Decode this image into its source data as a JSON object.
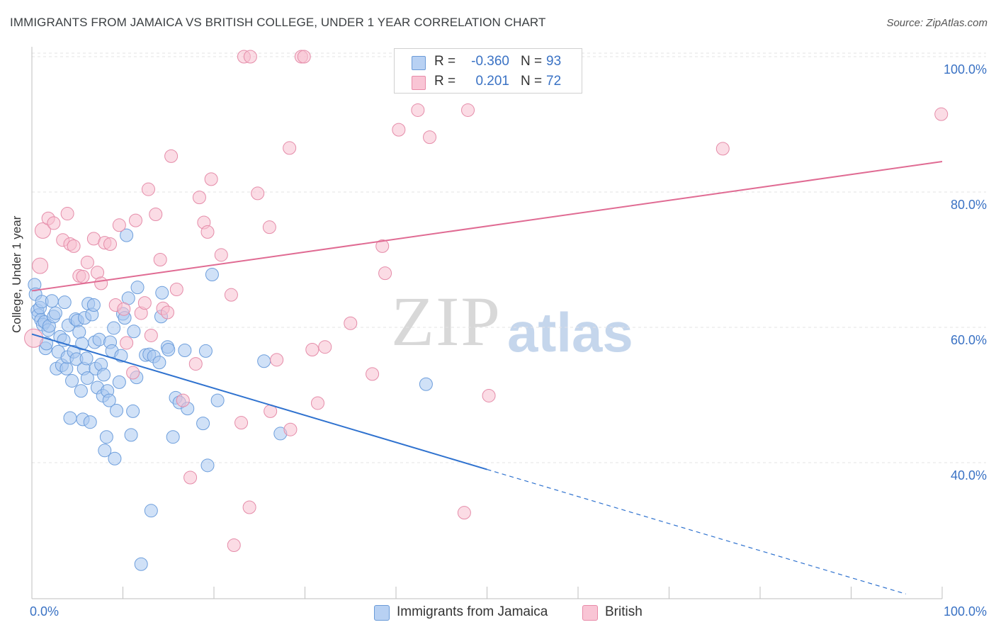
{
  "header": {
    "title": "IMMIGRANTS FROM JAMAICA VS BRITISH COLLEGE, UNDER 1 YEAR CORRELATION CHART",
    "source": "Source: ZipAtlas.com"
  },
  "watermark": {
    "zip": "ZIP",
    "atlas": "atlas"
  },
  "stats": [
    {
      "label": "R =",
      "r": "-0.360",
      "n_label": "N =",
      "n": "93",
      "color": "#b8d1f3",
      "border": "#6b9bd8"
    },
    {
      "label": "R =",
      "r": "0.201",
      "n_label": "N =",
      "n": "72",
      "color": "#f9c5d5",
      "border": "#e88aa8"
    }
  ],
  "legend": {
    "jamaica": "Immigrants from Jamaica",
    "british": "British"
  },
  "colors": {
    "blue_fill": "#a9c8f0",
    "blue_stroke": "#6d9edc",
    "blue_line": "#2f72cf",
    "pink_fill": "#f7bfd0",
    "pink_stroke": "#e58ca9",
    "pink_line": "#e06b93",
    "axis_text": "#3a72c4",
    "grid": "#e3e3e3"
  },
  "chart_data": {
    "type": "scatter",
    "xlabel": "",
    "ylabel": "College, Under 1 year",
    "xlim": [
      0,
      100
    ],
    "ylim": [
      20,
      102
    ],
    "x_tick_labels": [
      "0.0%",
      "100.0%"
    ],
    "y_ticks": [
      40,
      60,
      80,
      100
    ],
    "y_tick_labels": [
      "40.0%",
      "60.0%",
      "80.0%",
      "100.0%"
    ],
    "grid": true,
    "legend_position": "bottom-center",
    "series": [
      {
        "name": "Immigrants from Jamaica",
        "r": -0.36,
        "n": 93,
        "trend": {
          "x0": 0,
          "y0": 59.0,
          "x1": 50,
          "y1": 39.0,
          "dash_to_x": 96,
          "dash_to_y": 20.6
        },
        "points": [
          [
            0.3,
            66.3
          ],
          [
            0.4,
            64.9
          ],
          [
            0.6,
            62.5
          ],
          [
            0.7,
            61.8
          ],
          [
            0.9,
            62.9
          ],
          [
            1.0,
            61.1
          ],
          [
            1.1,
            63.8
          ],
          [
            1.2,
            60.4
          ],
          [
            1.4,
            60.8
          ],
          [
            1.5,
            56.9
          ],
          [
            1.6,
            57.6
          ],
          [
            1.8,
            59.6
          ],
          [
            1.9,
            60.2
          ],
          [
            2.2,
            63.9
          ],
          [
            2.4,
            61.6
          ],
          [
            2.6,
            62.1
          ],
          [
            2.7,
            53.9
          ],
          [
            2.9,
            56.4
          ],
          [
            3.1,
            58.6
          ],
          [
            3.3,
            54.4
          ],
          [
            3.5,
            58.1
          ],
          [
            3.6,
            63.7
          ],
          [
            3.8,
            53.9
          ],
          [
            3.9,
            55.6
          ],
          [
            4.0,
            60.3
          ],
          [
            4.2,
            46.6
          ],
          [
            4.4,
            52.1
          ],
          [
            4.6,
            56.4
          ],
          [
            4.8,
            61.2
          ],
          [
            4.9,
            55.3
          ],
          [
            5.0,
            61.0
          ],
          [
            5.2,
            59.3
          ],
          [
            5.4,
            50.6
          ],
          [
            5.5,
            57.6
          ],
          [
            5.6,
            46.4
          ],
          [
            5.7,
            53.9
          ],
          [
            5.8,
            61.4
          ],
          [
            6.0,
            55.4
          ],
          [
            6.1,
            52.5
          ],
          [
            6.2,
            63.5
          ],
          [
            6.4,
            46.0
          ],
          [
            6.6,
            61.9
          ],
          [
            6.8,
            63.3
          ],
          [
            6.9,
            57.8
          ],
          [
            7.0,
            53.9
          ],
          [
            7.2,
            51.1
          ],
          [
            7.4,
            58.2
          ],
          [
            7.6,
            54.5
          ],
          [
            7.8,
            49.9
          ],
          [
            7.9,
            53.0
          ],
          [
            8.0,
            41.8
          ],
          [
            8.2,
            43.8
          ],
          [
            8.3,
            50.6
          ],
          [
            8.5,
            49.2
          ],
          [
            8.6,
            57.8
          ],
          [
            8.8,
            56.5
          ],
          [
            9.0,
            59.9
          ],
          [
            9.1,
            40.6
          ],
          [
            9.3,
            47.7
          ],
          [
            9.6,
            51.9
          ],
          [
            9.8,
            55.8
          ],
          [
            10.0,
            62.0
          ],
          [
            10.2,
            61.4
          ],
          [
            10.4,
            73.6
          ],
          [
            10.6,
            64.3
          ],
          [
            10.9,
            44.1
          ],
          [
            11.1,
            47.6
          ],
          [
            11.2,
            59.4
          ],
          [
            11.5,
            52.6
          ],
          [
            11.6,
            65.9
          ],
          [
            12.0,
            25.0
          ],
          [
            12.5,
            55.9
          ],
          [
            12.9,
            56.0
          ],
          [
            13.1,
            32.9
          ],
          [
            13.4,
            55.7
          ],
          [
            14.0,
            54.8
          ],
          [
            14.2,
            61.6
          ],
          [
            14.3,
            65.1
          ],
          [
            14.9,
            57.1
          ],
          [
            15.0,
            56.7
          ],
          [
            15.5,
            43.8
          ],
          [
            15.8,
            49.6
          ],
          [
            16.2,
            48.9
          ],
          [
            16.8,
            56.6
          ],
          [
            17.1,
            48.0
          ],
          [
            18.8,
            45.8
          ],
          [
            19.1,
            56.5
          ],
          [
            19.3,
            39.6
          ],
          [
            19.8,
            67.8
          ],
          [
            20.4,
            49.2
          ],
          [
            25.5,
            55.0
          ],
          [
            27.3,
            44.3
          ],
          [
            43.3,
            51.6
          ]
        ]
      },
      {
        "name": "British",
        "r": 0.201,
        "n": 72,
        "trend": {
          "x0": 0,
          "y0": 65.4,
          "x1": 100,
          "y1": 84.5
        },
        "points": [
          [
            0.2,
            58.4
          ],
          [
            0.9,
            69.1
          ],
          [
            1.2,
            74.3
          ],
          [
            1.8,
            76.1
          ],
          [
            2.4,
            75.4
          ],
          [
            3.4,
            72.9
          ],
          [
            3.9,
            76.8
          ],
          [
            4.2,
            72.3
          ],
          [
            4.6,
            72.0
          ],
          [
            5.2,
            67.6
          ],
          [
            5.6,
            67.5
          ],
          [
            6.1,
            69.6
          ],
          [
            6.8,
            73.1
          ],
          [
            7.2,
            68.1
          ],
          [
            7.6,
            66.5
          ],
          [
            8.0,
            72.5
          ],
          [
            8.6,
            72.3
          ],
          [
            9.2,
            63.3
          ],
          [
            9.6,
            75.1
          ],
          [
            10.1,
            62.7
          ],
          [
            10.4,
            57.7
          ],
          [
            11.1,
            53.3
          ],
          [
            11.4,
            75.8
          ],
          [
            12.0,
            62.1
          ],
          [
            12.4,
            63.6
          ],
          [
            12.8,
            80.4
          ],
          [
            13.1,
            58.8
          ],
          [
            13.6,
            76.7
          ],
          [
            14.1,
            70.0
          ],
          [
            14.4,
            62.8
          ],
          [
            14.9,
            62.2
          ],
          [
            15.3,
            85.3
          ],
          [
            15.9,
            65.6
          ],
          [
            16.6,
            49.2
          ],
          [
            17.4,
            37.8
          ],
          [
            18.0,
            54.6
          ],
          [
            18.4,
            79.2
          ],
          [
            18.9,
            75.5
          ],
          [
            19.3,
            74.1
          ],
          [
            19.7,
            81.9
          ],
          [
            20.8,
            70.7
          ],
          [
            21.9,
            64.8
          ],
          [
            22.2,
            27.8
          ],
          [
            23.0,
            45.9
          ],
          [
            23.3,
            100.0
          ],
          [
            23.9,
            33.4
          ],
          [
            24.0,
            100.0
          ],
          [
            24.8,
            79.8
          ],
          [
            26.1,
            74.8
          ],
          [
            26.2,
            47.6
          ],
          [
            26.9,
            55.2
          ],
          [
            28.3,
            86.5
          ],
          [
            28.4,
            44.9
          ],
          [
            29.6,
            100.0
          ],
          [
            29.9,
            100.0
          ],
          [
            30.8,
            56.7
          ],
          [
            31.4,
            48.8
          ],
          [
            32.2,
            57.1
          ],
          [
            35.0,
            60.6
          ],
          [
            37.4,
            53.1
          ],
          [
            38.5,
            72.0
          ],
          [
            38.8,
            68.0
          ],
          [
            40.3,
            89.2
          ],
          [
            42.4,
            92.1
          ],
          [
            43.7,
            88.1
          ],
          [
            47.5,
            32.6
          ],
          [
            47.9,
            92.1
          ],
          [
            48.2,
            100.0
          ],
          [
            50.2,
            49.9
          ],
          [
            50.8,
            100.0
          ],
          [
            75.9,
            86.4
          ],
          [
            99.9,
            91.5
          ]
        ]
      }
    ]
  }
}
